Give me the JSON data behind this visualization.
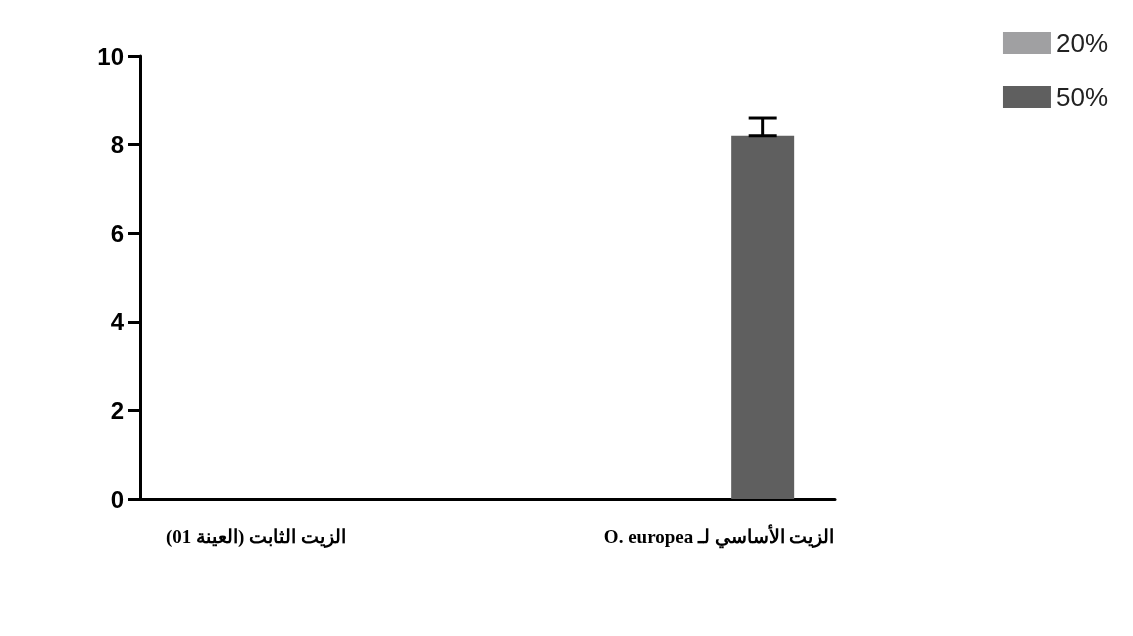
{
  "chart_data": {
    "type": "bar",
    "categories": [
      "الزيت الثابت (العينة 01)",
      null,
      "الزيت الأساسي لـ O. europea"
    ],
    "series": [
      {
        "name": "20%",
        "color": "#a0a0a2",
        "values": [
          0,
          null,
          0
        ]
      },
      {
        "name": "50%",
        "color": "#5f5f5f",
        "values": [
          0,
          null,
          8.2
        ],
        "errors": [
          null,
          null,
          [
            8.2,
            8.6
          ]
        ]
      }
    ],
    "ylim": [
      0,
      10
    ],
    "yticks": [
      0,
      2,
      4,
      6,
      8,
      10
    ],
    "grid": false,
    "legend": "top right"
  }
}
